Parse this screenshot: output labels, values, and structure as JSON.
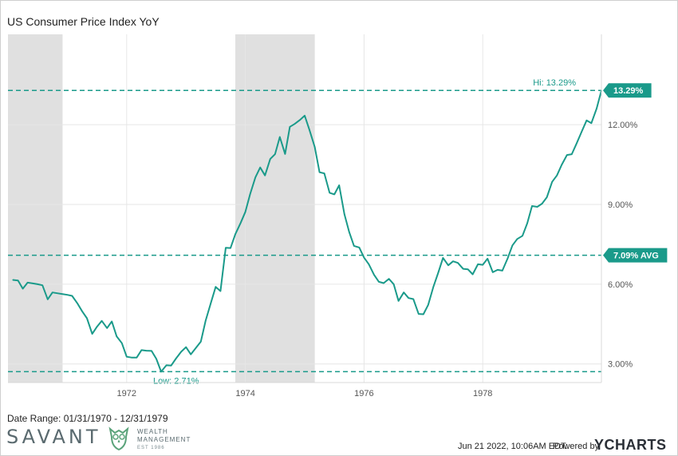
{
  "title": "US Consumer Price Index YoY",
  "date_range": "Date Range: 01/31/1970 - 12/31/1979",
  "footer": {
    "timestamp": "Jun 21 2022, 10:06AM EDT.",
    "powered_by": "Powered by",
    "brand": "YCHARTS"
  },
  "logo": {
    "name": "SAVANT",
    "line1": "WEALTH",
    "line2": "MANAGEMENT",
    "est": "EST 1986"
  },
  "colors": {
    "series": "#1a9a8a",
    "recession": "#e0e0e0",
    "grid": "#e6e6e6",
    "tag": "#1a9a8a"
  },
  "chart_data": {
    "type": "line",
    "title": "US Consumer Price Index YoY",
    "x_ticks": [
      "1972",
      "1974",
      "1976",
      "1978"
    ],
    "x_tick_years": [
      1972,
      1974,
      1976,
      1978
    ],
    "xlim": [
      1970.0,
      1980.0
    ],
    "y_ticks": [
      "3.00%",
      "6.00%",
      "9.00%",
      "12.00%"
    ],
    "y_tick_values": [
      3,
      6,
      9,
      12
    ],
    "ylim": [
      2.3,
      15.4
    ],
    "grid": true,
    "recessions": [
      [
        1970.0,
        1970.92
      ],
      [
        1973.83,
        1975.17
      ]
    ],
    "reference_lines": [
      {
        "label": "Hi: 13.29%",
        "tag": "13.29%",
        "value": 13.29
      },
      {
        "label": "",
        "tag": "7.09% AVG",
        "value": 7.09
      },
      {
        "label": "Low: 2.71%",
        "tag": "",
        "value": 2.71
      }
    ],
    "series": [
      {
        "values": [
          [
            1970.08,
            6.16
          ],
          [
            1970.17,
            6.14
          ],
          [
            1970.25,
            5.83
          ],
          [
            1970.33,
            6.06
          ],
          [
            1970.42,
            6.03
          ],
          [
            1970.5,
            6.0
          ],
          [
            1970.58,
            5.96
          ],
          [
            1970.67,
            5.43
          ],
          [
            1970.75,
            5.69
          ],
          [
            1970.83,
            5.66
          ],
          [
            1970.92,
            5.63
          ],
          [
            1971.0,
            5.6
          ],
          [
            1971.08,
            5.56
          ],
          [
            1971.17,
            5.28
          ],
          [
            1971.25,
            4.98
          ],
          [
            1971.33,
            4.72
          ],
          [
            1971.42,
            4.13
          ],
          [
            1971.5,
            4.4
          ],
          [
            1971.58,
            4.62
          ],
          [
            1971.67,
            4.35
          ],
          [
            1971.75,
            4.6
          ],
          [
            1971.83,
            4.04
          ],
          [
            1971.92,
            3.78
          ],
          [
            1972.0,
            3.27
          ],
          [
            1972.08,
            3.24
          ],
          [
            1972.17,
            3.24
          ],
          [
            1972.25,
            3.52
          ],
          [
            1972.33,
            3.5
          ],
          [
            1972.42,
            3.49
          ],
          [
            1972.5,
            3.19
          ],
          [
            1972.58,
            2.71
          ],
          [
            1972.67,
            2.95
          ],
          [
            1972.75,
            2.94
          ],
          [
            1972.83,
            3.2
          ],
          [
            1972.92,
            3.46
          ],
          [
            1973.0,
            3.63
          ],
          [
            1973.08,
            3.36
          ],
          [
            1973.17,
            3.61
          ],
          [
            1973.25,
            3.84
          ],
          [
            1973.33,
            4.63
          ],
          [
            1973.42,
            5.3
          ],
          [
            1973.5,
            5.9
          ],
          [
            1973.58,
            5.74
          ],
          [
            1973.67,
            7.37
          ],
          [
            1973.75,
            7.36
          ],
          [
            1973.83,
            7.88
          ],
          [
            1973.92,
            8.3
          ],
          [
            1974.0,
            8.72
          ],
          [
            1974.08,
            9.39
          ],
          [
            1974.17,
            10.02
          ],
          [
            1974.25,
            10.39
          ],
          [
            1974.33,
            10.09
          ],
          [
            1974.42,
            10.71
          ],
          [
            1974.5,
            10.89
          ],
          [
            1974.58,
            11.54
          ],
          [
            1974.67,
            10.9
          ],
          [
            1974.75,
            11.92
          ],
          [
            1974.83,
            12.03
          ],
          [
            1974.92,
            12.18
          ],
          [
            1975.0,
            12.34
          ],
          [
            1975.08,
            11.8
          ],
          [
            1975.17,
            11.16
          ],
          [
            1975.25,
            10.21
          ],
          [
            1975.33,
            10.17
          ],
          [
            1975.42,
            9.44
          ],
          [
            1975.5,
            9.38
          ],
          [
            1975.58,
            9.72
          ],
          [
            1975.67,
            8.63
          ],
          [
            1975.75,
            7.96
          ],
          [
            1975.83,
            7.44
          ],
          [
            1975.92,
            7.38
          ],
          [
            1976.0,
            7.0
          ],
          [
            1976.08,
            6.75
          ],
          [
            1976.17,
            6.35
          ],
          [
            1976.25,
            6.09
          ],
          [
            1976.33,
            6.04
          ],
          [
            1976.42,
            6.2
          ],
          [
            1976.5,
            6.0
          ],
          [
            1976.58,
            5.37
          ],
          [
            1976.67,
            5.69
          ],
          [
            1976.75,
            5.48
          ],
          [
            1976.83,
            5.44
          ],
          [
            1976.92,
            4.88
          ],
          [
            1977.0,
            4.87
          ],
          [
            1977.08,
            5.22
          ],
          [
            1977.17,
            5.91
          ],
          [
            1977.25,
            6.43
          ],
          [
            1977.33,
            6.99
          ],
          [
            1977.42,
            6.71
          ],
          [
            1977.5,
            6.86
          ],
          [
            1977.58,
            6.8
          ],
          [
            1977.67,
            6.58
          ],
          [
            1977.75,
            6.56
          ],
          [
            1977.83,
            6.37
          ],
          [
            1977.92,
            6.75
          ],
          [
            1978.0,
            6.73
          ],
          [
            1978.08,
            6.96
          ],
          [
            1978.17,
            6.45
          ],
          [
            1978.25,
            6.54
          ],
          [
            1978.33,
            6.51
          ],
          [
            1978.42,
            6.97
          ],
          [
            1978.5,
            7.46
          ],
          [
            1978.58,
            7.7
          ],
          [
            1978.67,
            7.82
          ],
          [
            1978.75,
            8.29
          ],
          [
            1978.83,
            8.94
          ],
          [
            1978.92,
            8.91
          ],
          [
            1979.0,
            9.03
          ],
          [
            1979.08,
            9.27
          ],
          [
            1979.17,
            9.85
          ],
          [
            1979.25,
            10.09
          ],
          [
            1979.33,
            10.49
          ],
          [
            1979.42,
            10.86
          ],
          [
            1979.5,
            10.89
          ],
          [
            1979.58,
            11.29
          ],
          [
            1979.67,
            11.75
          ],
          [
            1979.75,
            12.16
          ],
          [
            1979.83,
            12.06
          ],
          [
            1979.92,
            12.61
          ],
          [
            1980.0,
            13.29
          ]
        ]
      }
    ]
  }
}
